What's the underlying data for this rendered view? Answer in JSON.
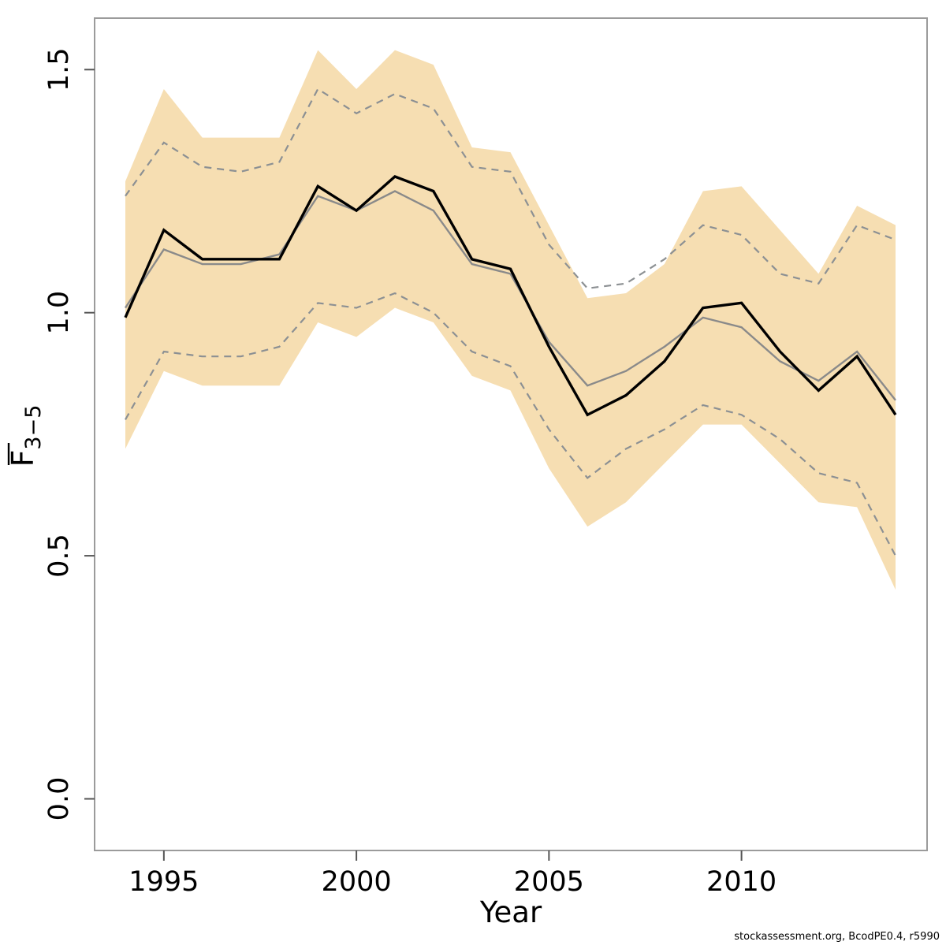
{
  "page": {
    "background": "#ffffff"
  },
  "footer": {
    "text": "stockassessment.org, BcodPE0.4, r5990"
  },
  "chart_data": {
    "type": "line",
    "title": "",
    "xlabel": "Year",
    "ylabel": "F̄3−5",
    "ylabel_main": "F",
    "ylabel_sub": "3−5",
    "grid": false,
    "legend_position": "none",
    "xlim": [
      1993.2,
      2014.8
    ],
    "ylim": [
      -0.105,
      1.605
    ],
    "xticks": [
      1995,
      2000,
      2005,
      2010
    ],
    "xtick_labels": [
      "1995",
      "2000",
      "2005",
      "2010"
    ],
    "yticks": [
      0.0,
      0.5,
      1.0,
      1.5
    ],
    "ytick_labels": [
      "0.0",
      "0.5",
      "1.0",
      "1.5"
    ],
    "x": [
      1994,
      1995,
      1996,
      1997,
      1998,
      1999,
      2000,
      2001,
      2002,
      2003,
      2004,
      2005,
      2006,
      2007,
      2008,
      2009,
      2010,
      2011,
      2012,
      2013,
      2014
    ],
    "series": [
      {
        "name": "current-estimate",
        "style": "solid-black",
        "values": [
          0.99,
          1.17,
          1.11,
          1.11,
          1.11,
          1.26,
          1.21,
          1.28,
          1.25,
          1.11,
          1.09,
          0.93,
          0.79,
          0.83,
          0.9,
          1.01,
          1.02,
          0.92,
          0.84,
          0.91,
          0.79
        ]
      },
      {
        "name": "previous-estimate",
        "style": "solid-gray",
        "values": [
          1.01,
          1.13,
          1.1,
          1.1,
          1.12,
          1.24,
          1.21,
          1.25,
          1.21,
          1.1,
          1.08,
          0.94,
          0.85,
          0.88,
          0.93,
          0.99,
          0.97,
          0.9,
          0.86,
          0.92,
          0.82
        ]
      },
      {
        "name": "ci-upper-dashed",
        "style": "dashed-gray",
        "values": [
          1.24,
          1.35,
          1.3,
          1.29,
          1.31,
          1.46,
          1.41,
          1.45,
          1.42,
          1.3,
          1.29,
          1.14,
          1.05,
          1.06,
          1.11,
          1.18,
          1.16,
          1.08,
          1.06,
          1.18,
          1.15
        ]
      },
      {
        "name": "ci-lower-dashed",
        "style": "dashed-gray",
        "values": [
          0.78,
          0.92,
          0.91,
          0.91,
          0.93,
          1.02,
          1.01,
          1.04,
          1.0,
          0.92,
          0.89,
          0.76,
          0.66,
          0.72,
          0.76,
          0.81,
          0.79,
          0.74,
          0.67,
          0.65,
          0.5
        ]
      },
      {
        "name": "band-upper",
        "style": "band-edge",
        "values": [
          1.27,
          1.46,
          1.36,
          1.36,
          1.36,
          1.54,
          1.46,
          1.54,
          1.51,
          1.34,
          1.33,
          1.18,
          1.03,
          1.04,
          1.1,
          1.25,
          1.26,
          1.17,
          1.08,
          1.22,
          1.18
        ]
      },
      {
        "name": "band-lower",
        "style": "band-edge",
        "values": [
          0.72,
          0.88,
          0.85,
          0.85,
          0.85,
          0.98,
          0.95,
          1.01,
          0.98,
          0.87,
          0.84,
          0.68,
          0.56,
          0.61,
          0.69,
          0.77,
          0.77,
          0.69,
          0.61,
          0.6,
          0.43
        ]
      }
    ],
    "colors": {
      "band": "#f6deb2",
      "dashed_line": "#8c9093",
      "gray_line": "#8a8a8a",
      "black_line": "#000000",
      "box": "#9b9b9b",
      "ticks": "#555555",
      "text": "#000000"
    }
  }
}
